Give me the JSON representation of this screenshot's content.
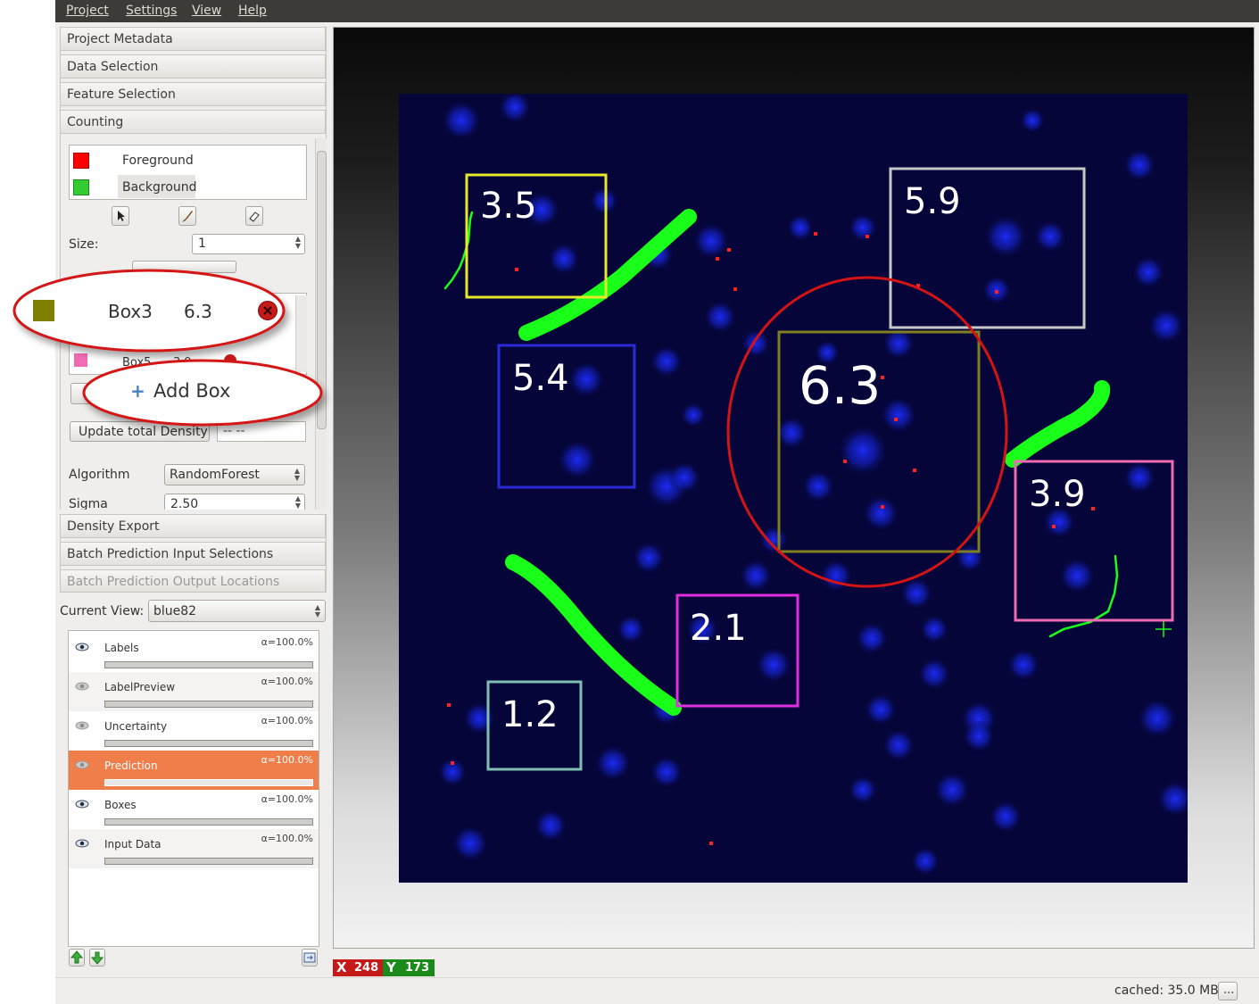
{
  "menubar": {
    "project": "Project",
    "settings": "Settings",
    "view": "View",
    "help": "Help"
  },
  "applets": {
    "project_metadata": "Project Metadata",
    "data_selection": "Data Selection",
    "feature_selection": "Feature Selection",
    "counting": "Counting",
    "density_export": "Density Export",
    "batch_input": "Batch Prediction Input Selections",
    "batch_output": "Batch Prediction Output Locations"
  },
  "labels": [
    {
      "name": "Foreground",
      "color": "#ff0000"
    },
    {
      "name": "Background",
      "color": "#33cc33"
    }
  ],
  "counting": {
    "size_label": "Size:",
    "size_value": "1",
    "boxes": [
      {
        "name": "Box3",
        "value": "6.3",
        "color": "#7f7f00"
      },
      {
        "name": "Box5",
        "value": "3.9",
        "color": "#f06bb4"
      }
    ],
    "add_box": "Add Box",
    "update_density": "Update total Density",
    "density_value": "-- --",
    "algorithm_label": "Algorithm",
    "algorithm_value": "RandomForest",
    "sigma_label": "Sigma",
    "sigma_value": "2.50"
  },
  "current_view": {
    "label": "Current View:",
    "value": "blue82"
  },
  "layers": [
    {
      "name": "Labels",
      "alpha": "α=100.0%",
      "visible": true,
      "selected": false
    },
    {
      "name": "LabelPreview",
      "alpha": "α=100.0%",
      "visible": false,
      "selected": false
    },
    {
      "name": "Uncertainty",
      "alpha": "α=100.0%",
      "visible": false,
      "selected": false
    },
    {
      "name": "Prediction",
      "alpha": "α=100.0%",
      "visible": false,
      "selected": true
    },
    {
      "name": "Boxes",
      "alpha": "α=100.0%",
      "visible": true,
      "selected": false
    },
    {
      "name": "Input Data",
      "alpha": "α=100.0%",
      "visible": true,
      "selected": false
    }
  ],
  "viewer": {
    "boxes": [
      {
        "label": "3.5",
        "color": "#e8e82a"
      },
      {
        "label": "5.9",
        "color": "#c8c8c8"
      },
      {
        "label": "5.4",
        "color": "#2a2ad8"
      },
      {
        "label": "6.3",
        "color": "#7f7f1e"
      },
      {
        "label": "3.9",
        "color": "#f06bb4"
      },
      {
        "label": "2.1",
        "color": "#e02ee0"
      },
      {
        "label": "1.2",
        "color": "#7fbfb0"
      }
    ],
    "brush_color": "#19ff19"
  },
  "coords": {
    "x_label": "X",
    "x_value": "248",
    "y_label": "Y",
    "y_value": "173"
  },
  "status": {
    "cached": "cached: 35.0 MB",
    "more": "..."
  }
}
